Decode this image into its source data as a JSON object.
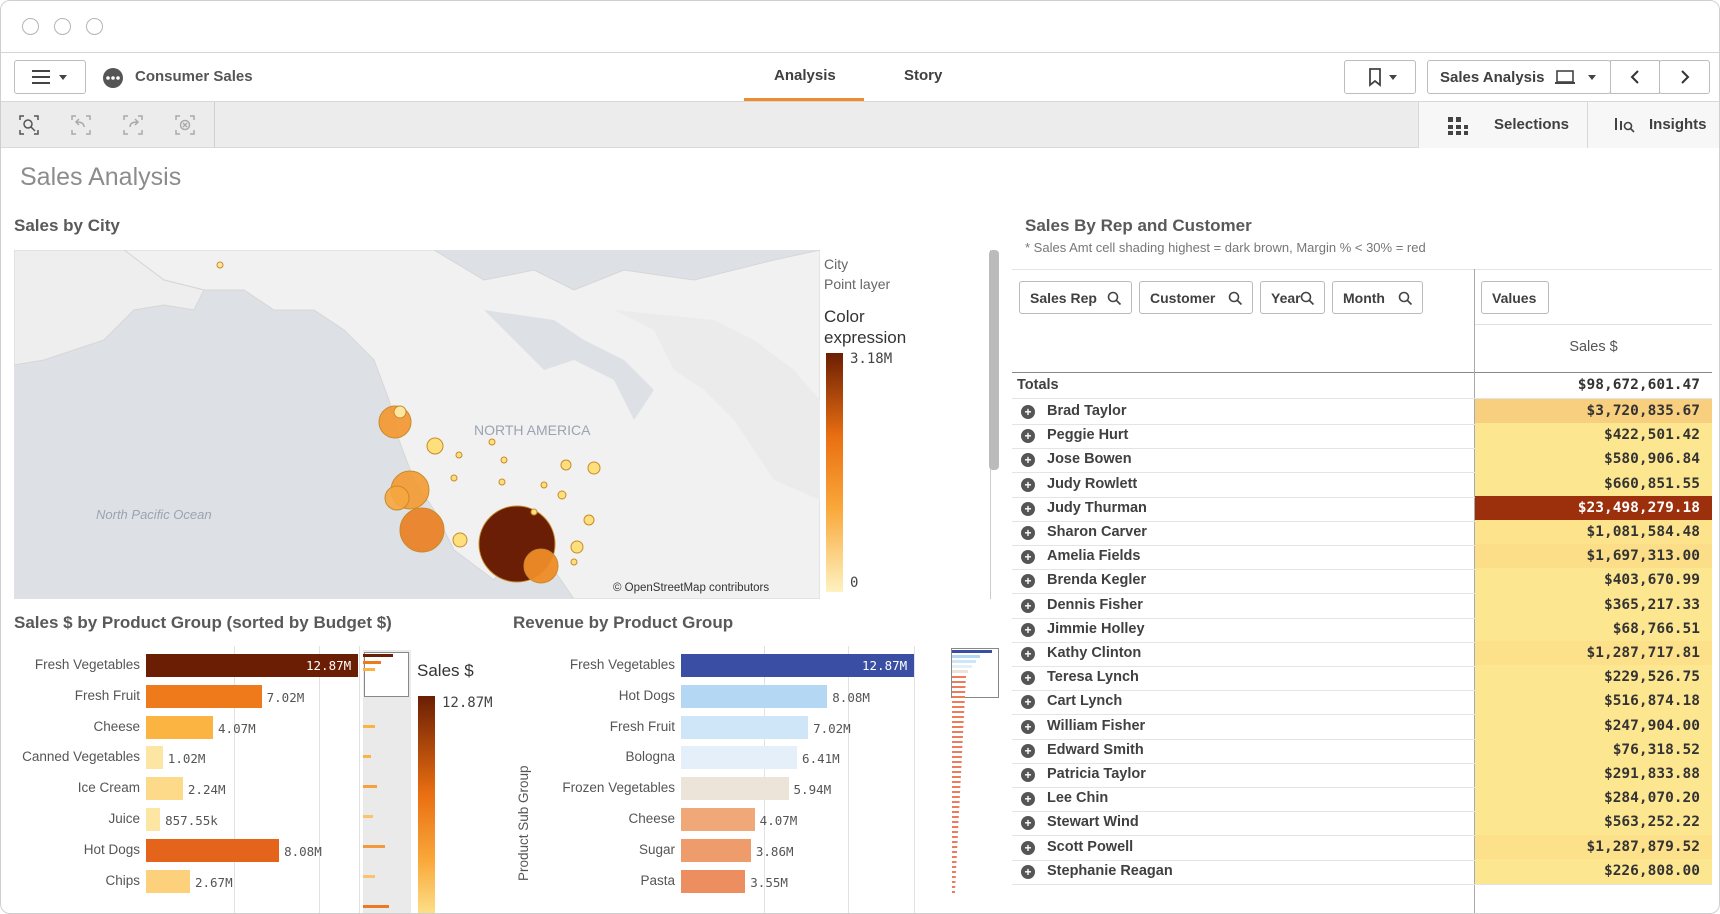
{
  "app": {
    "name": "Consumer Sales"
  },
  "tabs": [
    {
      "label": "Analysis"
    },
    {
      "label": "Story"
    }
  ],
  "header_right": {
    "sheet_selector": "Sales Analysis"
  },
  "subbar": {
    "selections": "Selections",
    "insights": "Insights"
  },
  "sheet": {
    "title": "Sales Analysis"
  },
  "map_chart": {
    "title": "Sales by City",
    "labels": {
      "continent": "NORTH AMERICA",
      "ocean": "North Pacific Ocean",
      "attribution": "© OpenStreetMap contributors"
    },
    "legend": {
      "layer": "City",
      "layer_type": "Point layer",
      "title": "Color expression",
      "max": "3.18M",
      "min": "0"
    },
    "colors": {
      "low": "#fde89a",
      "mid": "#f08a24",
      "high": "#6b1e04"
    }
  },
  "sales_by_product": {
    "title": "Sales $ by Product Group (sorted by Budget $)",
    "legend_title": "Sales $",
    "legend_max": "12.87M",
    "chart_data": {
      "type": "bar",
      "categories": [
        "Fresh Vegetables",
        "Fresh Fruit",
        "Cheese",
        "Canned Vegetables",
        "Ice Cream",
        "Juice",
        "Hot Dogs",
        "Chips"
      ],
      "values": [
        12.87,
        7.02,
        4.07,
        1.02,
        2.24,
        0.85755,
        8.08,
        2.67
      ],
      "value_labels": [
        "12.87M",
        "7.02M",
        "4.07M",
        "1.02M",
        "2.24M",
        "857.55k",
        "8.08M",
        "2.67M"
      ],
      "colors": [
        "#6b1e04",
        "#ee7a1c",
        "#fbb441",
        "#fde6a4",
        "#fdd98a",
        "#fde6a4",
        "#e4641b",
        "#fdd17b"
      ]
    }
  },
  "revenue_by_product": {
    "title": "Revenue by Product Group",
    "ylabel": "Product Sub Group",
    "chart_data": {
      "type": "bar",
      "categories": [
        "Fresh Vegetables",
        "Hot Dogs",
        "Fresh Fruit",
        "Bologna",
        "Frozen Vegetables",
        "Cheese",
        "Sugar",
        "Pasta"
      ],
      "values": [
        12.87,
        8.08,
        7.02,
        6.41,
        5.94,
        4.07,
        3.86,
        3.55
      ],
      "value_labels": [
        "12.87M",
        "8.08M",
        "7.02M",
        "6.41M",
        "5.94M",
        "4.07M",
        "3.86M",
        "3.55M"
      ],
      "colors": [
        "#3a4fa3",
        "#b4d8f4",
        "#cfe5f8",
        "#e4eff9",
        "#ece4d9",
        "#f0a878",
        "#ee9c6c",
        "#ec8e60"
      ]
    }
  },
  "pivot": {
    "title": "Sales By Rep and Customer",
    "subtitle": "* Sales Amt cell shading highest = dark brown, Margin % < 30% = red",
    "filters": [
      "Sales Rep",
      "Customer",
      "Year",
      "Month"
    ],
    "values_button": "Values",
    "column": "Sales $",
    "totals_label": "Totals",
    "totals_value": "$98,672,601.47",
    "rows": [
      {
        "name": "Brad Taylor",
        "value": "$3,720,835.67",
        "color": "#f8cf7e"
      },
      {
        "name": "Peggie Hurt",
        "value": "$422,501.42",
        "color": "#fde690"
      },
      {
        "name": "Jose Bowen",
        "value": "$580,906.84",
        "color": "#fde690"
      },
      {
        "name": "Judy Rowlett",
        "value": "$660,851.55",
        "color": "#fde690"
      },
      {
        "name": "Judy Thurman",
        "value": "$23,498,279.18",
        "color": "#9c2f0c"
      },
      {
        "name": "Sharon Carver",
        "value": "$1,081,584.48",
        "color": "#fde38c"
      },
      {
        "name": "Amelia Fields",
        "value": "$1,697,313.00",
        "color": "#fcde88"
      },
      {
        "name": "Brenda Kegler",
        "value": "$403,670.99",
        "color": "#fde690"
      },
      {
        "name": "Dennis Fisher",
        "value": "$365,217.33",
        "color": "#fde690"
      },
      {
        "name": "Jimmie Holley",
        "value": "$68,766.51",
        "color": "#fde690"
      },
      {
        "name": "Kathy Clinton",
        "value": "$1,287,717.81",
        "color": "#fde18a"
      },
      {
        "name": "Teresa Lynch",
        "value": "$229,526.75",
        "color": "#fde690"
      },
      {
        "name": "Cart Lynch",
        "value": "$516,874.18",
        "color": "#fde690"
      },
      {
        "name": "William Fisher",
        "value": "$247,904.00",
        "color": "#fde690"
      },
      {
        "name": "Edward Smith",
        "value": "$76,318.52",
        "color": "#fde690"
      },
      {
        "name": "Patricia Taylor",
        "value": "$291,833.88",
        "color": "#fde690"
      },
      {
        "name": "Lee Chin",
        "value": "$284,070.20",
        "color": "#fde690"
      },
      {
        "name": "Stewart Wind",
        "value": "$563,252.22",
        "color": "#fde690"
      },
      {
        "name": "Scott Powell",
        "value": "$1,287,879.52",
        "color": "#fde18a"
      },
      {
        "name": "Stephanie Reagan",
        "value": "$226,808.00",
        "color": "#fde690"
      }
    ]
  }
}
